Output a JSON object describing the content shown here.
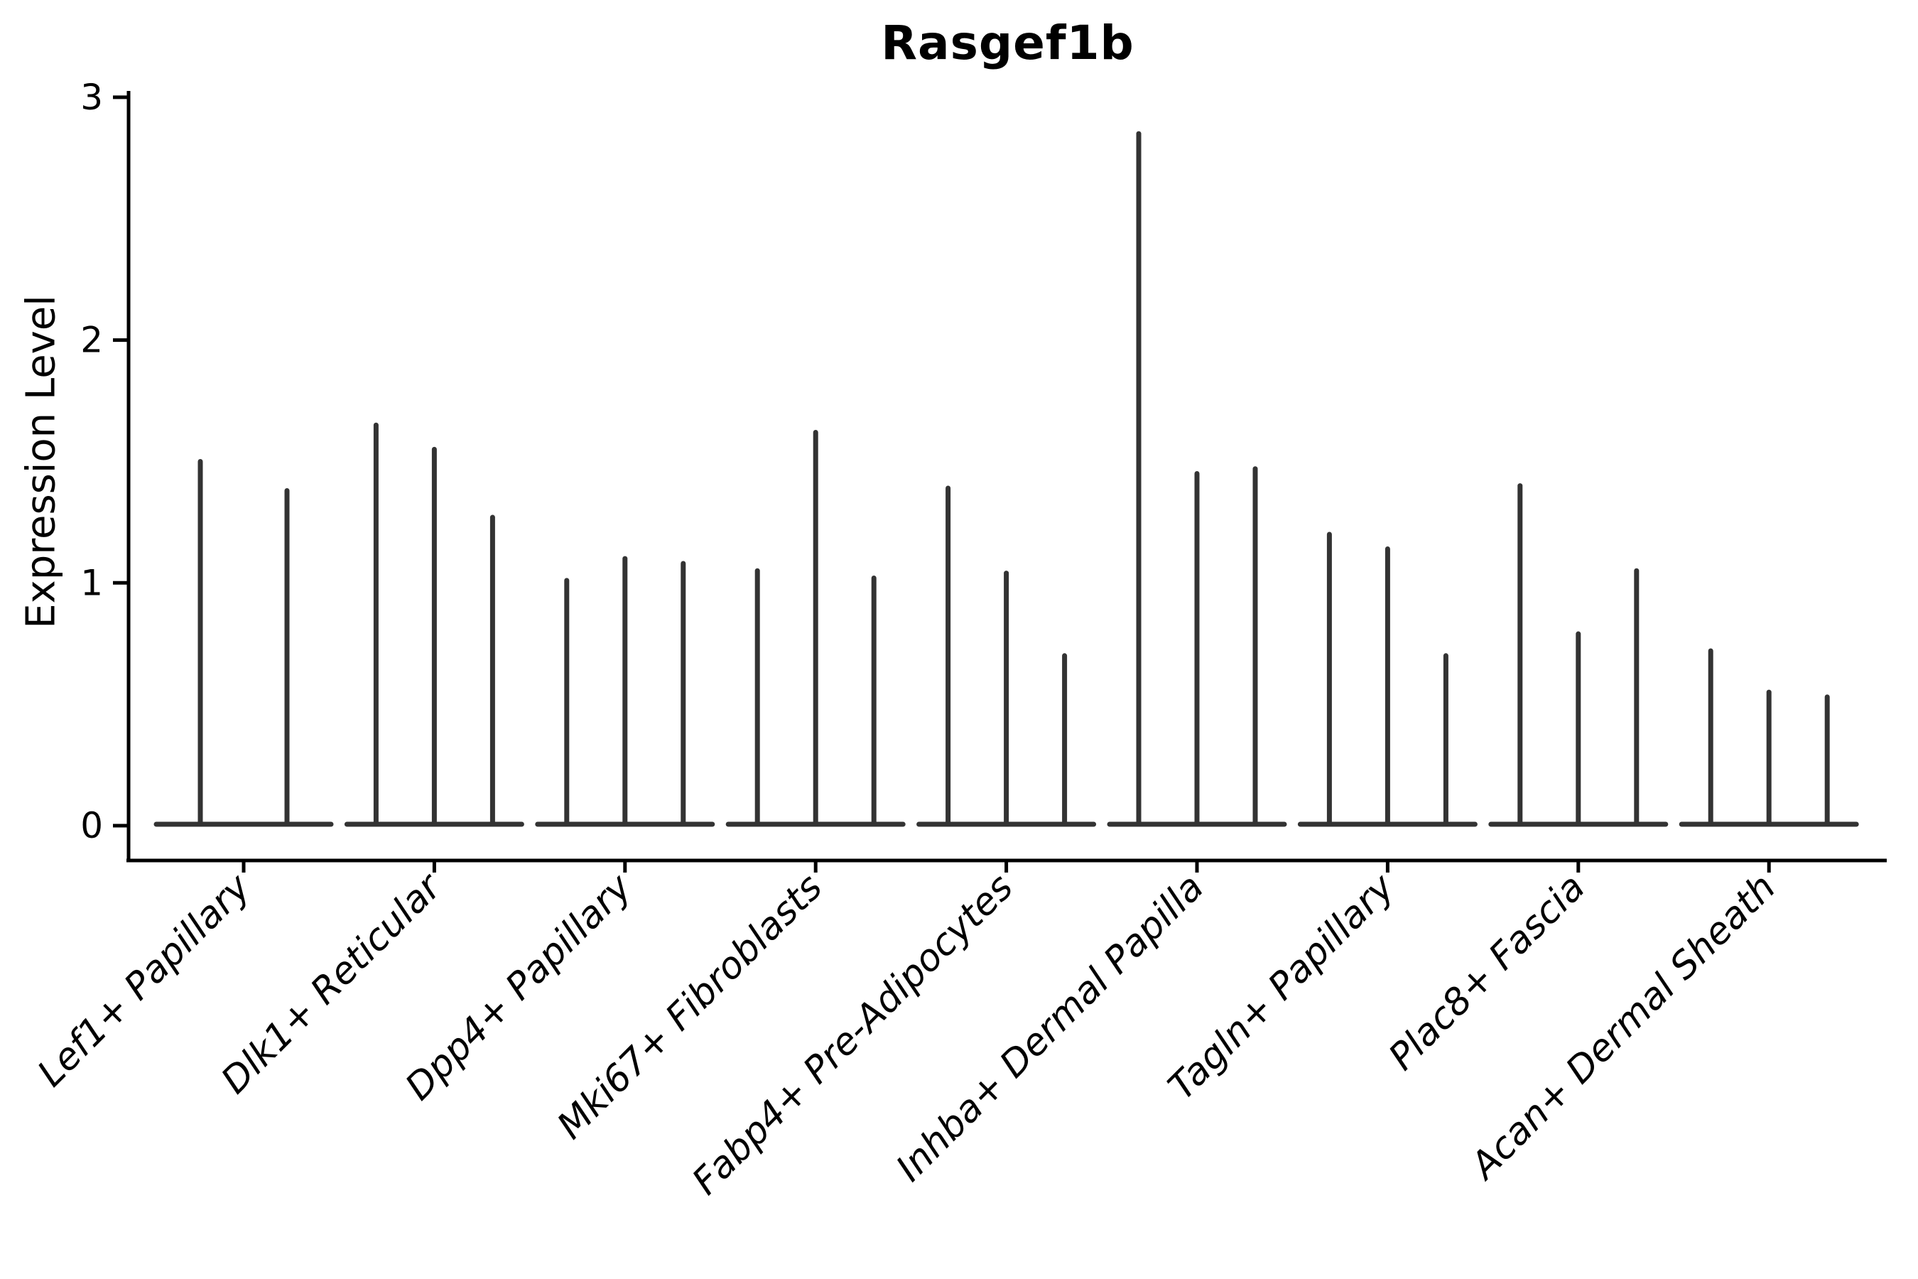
{
  "chart_data": {
    "type": "violin",
    "title": "Rasgef1b",
    "ylabel": "Expression Level",
    "xlabel": "",
    "yticks": [
      "0",
      "1",
      "2",
      "3"
    ],
    "ylim": [
      -0.15,
      3.0
    ],
    "grid": false,
    "legend_position": "none",
    "x_tick_label_rotation_deg": 45,
    "x_tick_label_style": "italic",
    "categories": [
      "Lef1+ Papillary",
      "Dlk1+ Reticular",
      "Dpp4+ Papillary",
      "Mki67+ Fibroblasts",
      "Fabp4+ Pre-Adipocytes",
      "Inhba+ Dermal Papilla",
      "Tagln+ Papillary",
      "Plac8+ Fascia",
      "Acan+ Dermal Sheath"
    ],
    "groups": [
      {
        "category": "Lef1+ Papillary",
        "violin_maxima": [
          1.5,
          1.38
        ]
      },
      {
        "category": "Dlk1+ Reticular",
        "violin_maxima": [
          1.65,
          1.55,
          1.27
        ]
      },
      {
        "category": "Dpp4+ Papillary",
        "violin_maxima": [
          1.01,
          1.1,
          1.08
        ]
      },
      {
        "category": "Mki67+ Fibroblasts",
        "violin_maxima": [
          1.05,
          1.62,
          1.02
        ]
      },
      {
        "category": "Fabp4+ Pre-Adipocytes",
        "violin_maxima": [
          1.39,
          1.04,
          0.7
        ]
      },
      {
        "category": "Inhba+ Dermal Papilla",
        "violin_maxima": [
          2.85,
          1.45,
          1.47
        ]
      },
      {
        "category": "Tagln+ Papillary",
        "violin_maxima": [
          1.2,
          1.14,
          0.7
        ]
      },
      {
        "category": "Plac8+ Fascia",
        "violin_maxima": [
          1.4,
          0.79,
          1.05
        ]
      },
      {
        "category": "Acan+ Dermal Sheath",
        "violin_maxima": [
          0.72,
          0.55,
          0.53
        ]
      }
    ],
    "violin_color": "#333333",
    "axis_color": "#000000",
    "background_color": "#ffffff"
  }
}
